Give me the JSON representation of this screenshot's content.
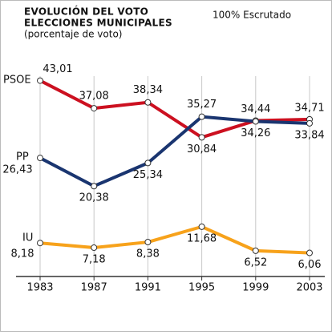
{
  "chart_data": {
    "type": "line",
    "title": [
      "EVOLUCIÓN DEL VOTO",
      "ELECCIONES MUNICIPALES"
    ],
    "subtitle": "(porcentaje de voto)",
    "annotation": "100% Escrutado",
    "categories": [
      "1983",
      "1987",
      "1991",
      "1995",
      "1999",
      "2003"
    ],
    "ylim": [
      1,
      45
    ],
    "grid": true,
    "series": [
      {
        "name": "PSOE",
        "color": "#cc1020",
        "values": [
          43.01,
          37.08,
          38.34,
          30.84,
          34.44,
          34.71
        ],
        "value_labels": [
          "43,01",
          "37,08",
          "38,34",
          "30,84",
          "34,44",
          "34,71"
        ]
      },
      {
        "name": "PP",
        "color": "#1a3570",
        "values": [
          26.43,
          20.38,
          25.34,
          35.27,
          34.26,
          33.84
        ],
        "value_labels": [
          "26,43",
          "20,38",
          "25,34",
          "35,27",
          "34,26",
          "33,84"
        ]
      },
      {
        "name": "IU",
        "color": "#f7a21b",
        "values": [
          8.18,
          7.18,
          8.38,
          11.68,
          6.52,
          6.06
        ],
        "value_labels": [
          "8,18",
          "7,18",
          "8,38",
          "11,68",
          "6,52",
          "6,06"
        ]
      }
    ]
  }
}
